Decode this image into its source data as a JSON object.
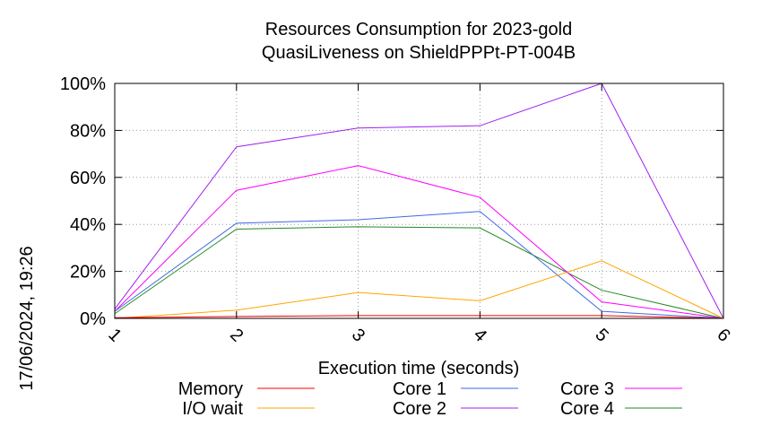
{
  "chart_data": {
    "type": "line",
    "title": "Resources Consumption for 2023-gold",
    "subtitle": "QuasiLiveness on ShieldPPPt-PT-004B",
    "xlabel": "Execution time (seconds)",
    "ylabel": "",
    "timestamp": "17/06/2024, 19:26",
    "x": [
      1,
      2,
      3,
      4,
      5,
      6
    ],
    "xlim": [
      1,
      6
    ],
    "ylim": [
      0,
      100
    ],
    "x_ticks": [
      "1",
      "2",
      "3",
      "4",
      "5",
      "6"
    ],
    "y_ticks": [
      "0%",
      "20%",
      "40%",
      "60%",
      "80%",
      "100%"
    ],
    "grid": true,
    "legend_position": "bottom",
    "series": [
      {
        "name": "Memory",
        "color": "#ff0000",
        "values": [
          0.3,
          0.8,
          1.2,
          1.2,
          1.2,
          0
        ]
      },
      {
        "name": "I/O wait",
        "color": "#ffa500",
        "values": [
          0,
          3.5,
          11,
          7.5,
          24.5,
          0
        ]
      },
      {
        "name": "Core 1",
        "color": "#4169e1",
        "values": [
          3,
          40.5,
          42,
          45.5,
          3,
          0
        ]
      },
      {
        "name": "Core 2",
        "color": "#a020f0",
        "values": [
          4,
          73,
          81,
          82,
          100,
          0
        ]
      },
      {
        "name": "Core 3",
        "color": "#ff00ff",
        "values": [
          3,
          54.5,
          65,
          51.5,
          7,
          0
        ]
      },
      {
        "name": "Core 4",
        "color": "#228b22",
        "values": [
          2,
          38,
          39,
          38.5,
          12,
          0
        ]
      }
    ]
  }
}
